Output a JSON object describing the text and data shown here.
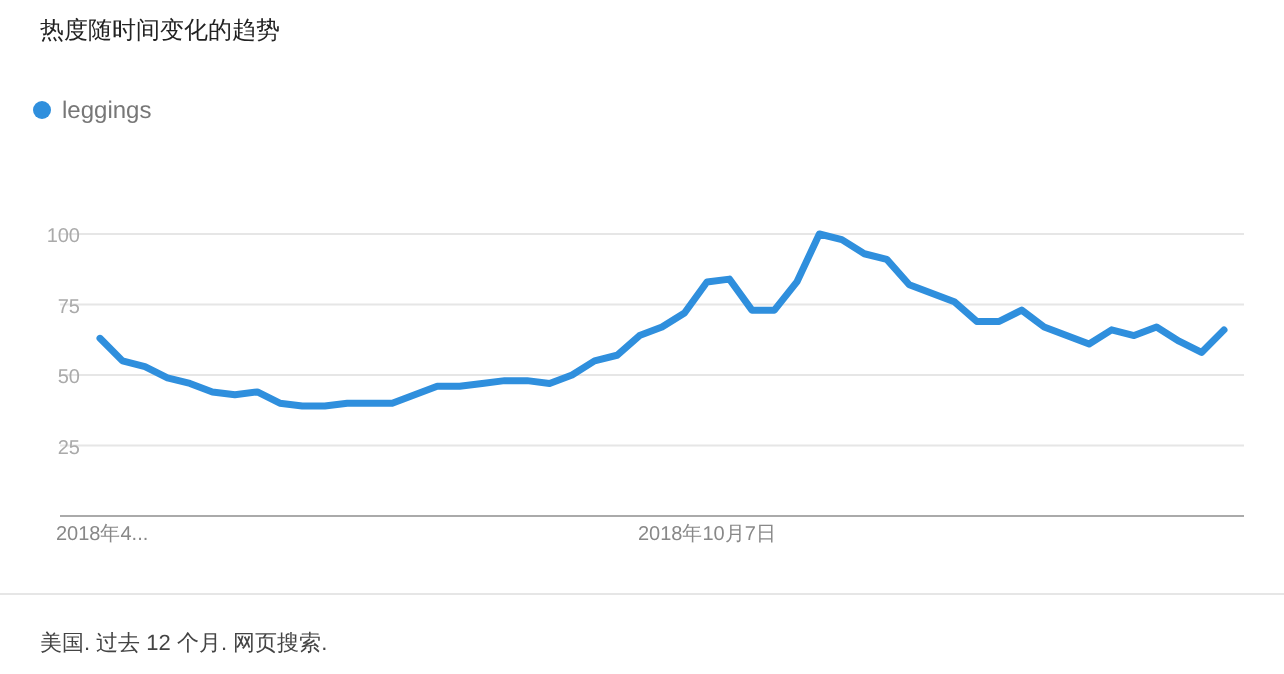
{
  "chart_data": {
    "type": "line",
    "title": "热度随时间变化的趋势",
    "annotations": [
      "美国. 过去 12 个月. 网页搜索."
    ],
    "categories": [
      "2018年4...",
      null,
      null,
      null,
      null,
      null,
      null,
      null,
      null,
      null,
      null,
      null,
      null,
      null,
      null,
      null,
      null,
      null,
      null,
      null,
      null,
      null,
      null,
      null,
      null,
      null,
      null,
      "2018年10月7日",
      null,
      null,
      null,
      null,
      null,
      null,
      null,
      null,
      null,
      null,
      null,
      null,
      null,
      null,
      null,
      null,
      null,
      null,
      null,
      null,
      null,
      null,
      null
    ],
    "series": [
      {
        "name": "leggings",
        "color": "#2f8fdd",
        "values": [
          63,
          55,
          53,
          49,
          47,
          44,
          43,
          44,
          40,
          39,
          39,
          40,
          40,
          40,
          43,
          46,
          46,
          47,
          48,
          48,
          47,
          50,
          55,
          57,
          64,
          67,
          72,
          83,
          84,
          73,
          73,
          83,
          100,
          98,
          93,
          91,
          82,
          79,
          76,
          69,
          69,
          73,
          67,
          64,
          61,
          66,
          64,
          67,
          62,
          58,
          66
        ]
      }
    ],
    "ylim": [
      0,
      100
    ],
    "yticks": [
      25,
      50,
      75,
      100
    ],
    "grid": "y",
    "legend": "top left",
    "marker": "none",
    "line_style": "solid"
  }
}
